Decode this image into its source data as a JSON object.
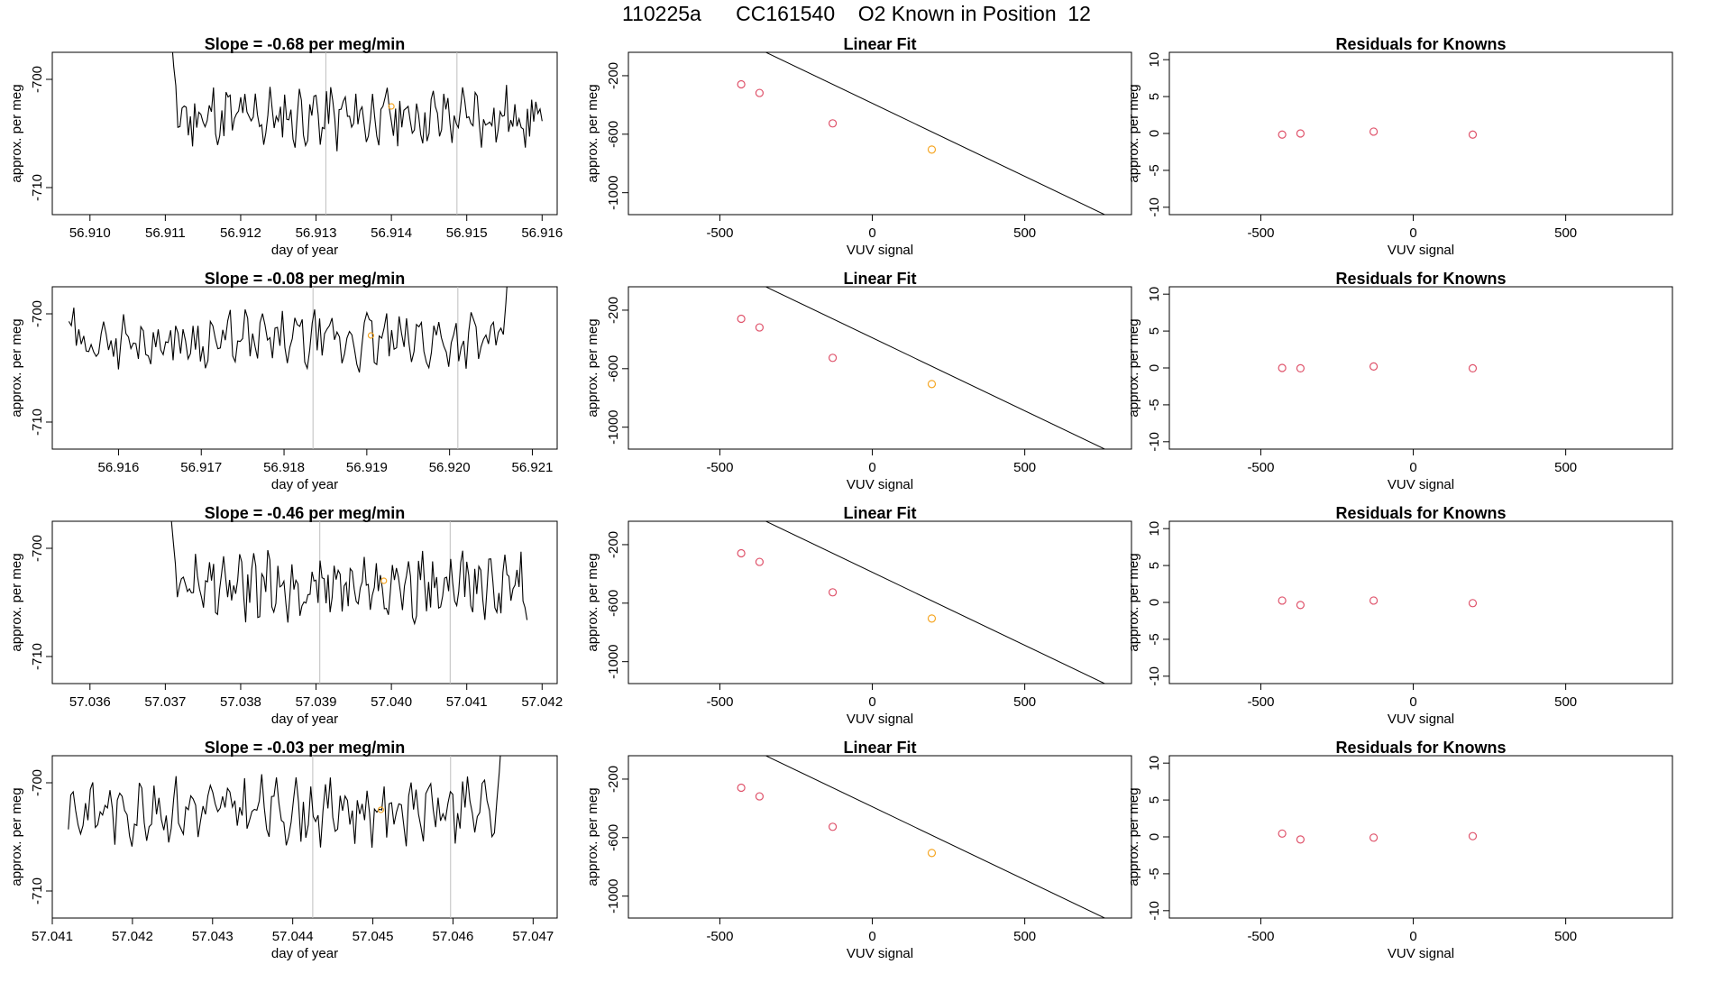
{
  "page_title": "110225a      CC161540    O2 Known in Position  12",
  "colors": {
    "trace": "#000000",
    "gridline": "#bebebe",
    "point_red": "#df536b",
    "point_orange": "#f5a623",
    "frame": "#000000"
  },
  "chart_data": [
    {
      "type": "line",
      "panel": "timeseries",
      "row": 0,
      "title": "Slope =  -0.68  per meg/min",
      "xlabel": "day of year",
      "ylabel": "approx. per meg",
      "xlim": [
        56.9095,
        56.9162
      ],
      "ylim": [
        -712.5,
        -697.5
      ],
      "xticks": [
        "56.910",
        "56.911",
        "56.912",
        "56.913",
        "56.914",
        "56.915",
        "56.916"
      ],
      "yticks": [
        "-710",
        "-700"
      ],
      "vlines": [
        56.91313,
        56.91487
      ],
      "highlight": {
        "x": 56.914,
        "y": -702.5
      },
      "start_x": 56.911,
      "end_x": 56.916,
      "start_y": -698,
      "peak_y": -690,
      "base_y": -703.5,
      "amp": 2.2,
      "seed": 11,
      "end_rise": false
    },
    {
      "type": "scatter",
      "panel": "linear_fit",
      "row": 0,
      "title": "Linear Fit",
      "xlabel": "VUV signal",
      "ylabel": "approx. per meg",
      "xlim": [
        -800,
        850
      ],
      "ylim": [
        -1150,
        -40
      ],
      "xticks": [
        "-500",
        "0",
        "500"
      ],
      "yticks": [
        "-200",
        "-600",
        "-1000"
      ],
      "line": {
        "slope": -0.9986,
        "intercept": -388.8,
        "x0": -710,
        "x1": 790
      },
      "points": [
        {
          "x": -430,
          "y": -259,
          "color": "red"
        },
        {
          "x": -370,
          "y": -318,
          "color": "red"
        },
        {
          "x": -130,
          "y": -526,
          "color": "red"
        },
        {
          "x": 195,
          "y": -705,
          "color": "orange"
        }
      ]
    },
    {
      "type": "scatter",
      "panel": "residuals",
      "row": 0,
      "title": "Residuals for Knowns",
      "xlabel": "VUV signal",
      "ylabel": "approx. per meg",
      "xlim": [
        -800,
        850
      ],
      "ylim": [
        -11,
        11
      ],
      "xticks": [
        "-500",
        "0",
        "500"
      ],
      "yticks": [
        "-10",
        "-5",
        "0",
        "5",
        "10"
      ],
      "points": [
        {
          "x": -430,
          "y": -0.15
        },
        {
          "x": -370,
          "y": 0.0
        },
        {
          "x": -130,
          "y": 0.25
        },
        {
          "x": 195,
          "y": -0.15
        }
      ]
    },
    {
      "type": "line",
      "panel": "timeseries",
      "row": 1,
      "title": "Slope =  -0.08  per meg/min",
      "xlabel": "day of year",
      "ylabel": "approx. per meg",
      "xlim": [
        56.9152,
        56.9213
      ],
      "ylim": [
        -712.5,
        -697.5
      ],
      "xticks": [
        "56.916",
        "56.917",
        "56.918",
        "56.919",
        "56.920",
        "56.921"
      ],
      "yticks": [
        "-710",
        "-700"
      ],
      "vlines": [
        56.91835,
        56.9201
      ],
      "highlight": {
        "x": 56.91905,
        "y": -702.0
      },
      "start_x": 56.9154,
      "end_x": 56.9208,
      "start_y": -702,
      "peak_y": -703,
      "base_y": -702.5,
      "amp": 2.0,
      "seed": 29,
      "end_rise": true
    },
    {
      "type": "scatter",
      "panel": "linear_fit",
      "row": 1,
      "title": "Linear Fit",
      "xlabel": "VUV signal",
      "ylabel": "approx. per meg",
      "xlim": [
        -800,
        850
      ],
      "ylim": [
        -1150,
        -40
      ],
      "xticks": [
        "-500",
        "0",
        "500"
      ],
      "yticks": [
        "-200",
        "-600",
        "-1000"
      ],
      "line": {
        "slope": -0.9986,
        "intercept": -388.8,
        "x0": -710,
        "x1": 790
      },
      "points": [
        {
          "x": -430,
          "y": -259,
          "color": "red"
        },
        {
          "x": -370,
          "y": -318,
          "color": "red"
        },
        {
          "x": -130,
          "y": -526,
          "color": "red"
        },
        {
          "x": 195,
          "y": -705,
          "color": "orange"
        }
      ]
    },
    {
      "type": "scatter",
      "panel": "residuals",
      "row": 1,
      "title": "Residuals for Knowns",
      "xlabel": "VUV signal",
      "ylabel": "approx. per meg",
      "xlim": [
        -800,
        850
      ],
      "ylim": [
        -11,
        11
      ],
      "xticks": [
        "-500",
        "0",
        "500"
      ],
      "yticks": [
        "-10",
        "-5",
        "0",
        "5",
        "10"
      ],
      "points": [
        {
          "x": -430,
          "y": 0.0
        },
        {
          "x": -370,
          "y": -0.05
        },
        {
          "x": -130,
          "y": 0.2
        },
        {
          "x": 195,
          "y": -0.05
        }
      ]
    },
    {
      "type": "line",
      "panel": "timeseries",
      "row": 2,
      "title": "Slope =  -0.46  per meg/min",
      "xlabel": "day of year",
      "ylabel": "approx. per meg",
      "xlim": [
        57.0355,
        57.0422
      ],
      "ylim": [
        -712.5,
        -697.5
      ],
      "xticks": [
        "57.036",
        "57.037",
        "57.038",
        "57.039",
        "57.040",
        "57.041",
        "57.042"
      ],
      "yticks": [
        "-710",
        "-700"
      ],
      "vlines": [
        57.03905,
        57.04078
      ],
      "highlight": {
        "x": 57.0399,
        "y": -703.0
      },
      "start_x": 57.037,
      "end_x": 57.0418,
      "start_y": -698,
      "peak_y": -692,
      "base_y": -703.5,
      "amp": 2.2,
      "seed": 47,
      "end_rise": false
    },
    {
      "type": "scatter",
      "panel": "linear_fit",
      "row": 2,
      "title": "Linear Fit",
      "xlabel": "VUV signal",
      "ylabel": "approx. per meg",
      "xlim": [
        -800,
        850
      ],
      "ylim": [
        -1150,
        -40
      ],
      "xticks": [
        "-500",
        "0",
        "500"
      ],
      "yticks": [
        "-200",
        "-600",
        "-1000"
      ],
      "line": {
        "slope": -0.9986,
        "intercept": -388.8,
        "x0": -710,
        "x1": 790
      },
      "points": [
        {
          "x": -430,
          "y": -259,
          "color": "red"
        },
        {
          "x": -370,
          "y": -318,
          "color": "red"
        },
        {
          "x": -130,
          "y": -526,
          "color": "red"
        },
        {
          "x": 195,
          "y": -705,
          "color": "orange"
        }
      ]
    },
    {
      "type": "scatter",
      "panel": "residuals",
      "row": 2,
      "title": "Residuals for Knowns",
      "xlabel": "VUV signal",
      "ylabel": "approx. per meg",
      "xlim": [
        -800,
        850
      ],
      "ylim": [
        -11,
        11
      ],
      "xticks": [
        "-500",
        "0",
        "500"
      ],
      "yticks": [
        "-10",
        "-5",
        "0",
        "5",
        "10"
      ],
      "points": [
        {
          "x": -430,
          "y": 0.25
        },
        {
          "x": -370,
          "y": -0.35
        },
        {
          "x": -130,
          "y": 0.25
        },
        {
          "x": 195,
          "y": -0.1
        }
      ]
    },
    {
      "type": "line",
      "panel": "timeseries",
      "row": 3,
      "title": "Slope =  -0.03  per meg/min",
      "xlabel": "day of year",
      "ylabel": "approx. per meg",
      "xlim": [
        57.041,
        57.0473
      ],
      "ylim": [
        -712.5,
        -697.5
      ],
      "xticks": [
        "57.041",
        "57.042",
        "57.043",
        "57.044",
        "57.045",
        "57.046",
        "57.047"
      ],
      "yticks": [
        "-710",
        "-700"
      ],
      "vlines": [
        57.04425,
        57.04597
      ],
      "highlight": {
        "x": 57.0451,
        "y": -702.5
      },
      "start_x": 57.0412,
      "end_x": 57.0467,
      "start_y": -702,
      "peak_y": -703,
      "base_y": -702.5,
      "amp": 2.2,
      "seed": 83,
      "end_rise": true
    },
    {
      "type": "scatter",
      "panel": "linear_fit",
      "row": 3,
      "title": "Linear Fit",
      "xlabel": "VUV signal",
      "ylabel": "approx. per meg",
      "xlim": [
        -800,
        850
      ],
      "ylim": [
        -1150,
        -40
      ],
      "xticks": [
        "-500",
        "0",
        "500"
      ],
      "yticks": [
        "-200",
        "-600",
        "-1000"
      ],
      "line": {
        "slope": -0.9986,
        "intercept": -388.8,
        "x0": -710,
        "x1": 790
      },
      "points": [
        {
          "x": -430,
          "y": -259,
          "color": "red"
        },
        {
          "x": -370,
          "y": -318,
          "color": "red"
        },
        {
          "x": -130,
          "y": -526,
          "color": "red"
        },
        {
          "x": 195,
          "y": -705,
          "color": "orange"
        }
      ]
    },
    {
      "type": "scatter",
      "panel": "residuals",
      "row": 3,
      "title": "Residuals for Knowns",
      "xlabel": "VUV signal",
      "ylabel": "approx. per meg",
      "xlim": [
        -800,
        850
      ],
      "ylim": [
        -11,
        11
      ],
      "xticks": [
        "-500",
        "0",
        "500"
      ],
      "yticks": [
        "-10",
        "-5",
        "0",
        "5",
        "10"
      ],
      "points": [
        {
          "x": -430,
          "y": 0.45
        },
        {
          "x": -370,
          "y": -0.35
        },
        {
          "x": -130,
          "y": -0.1
        },
        {
          "x": 195,
          "y": 0.1
        }
      ]
    }
  ]
}
